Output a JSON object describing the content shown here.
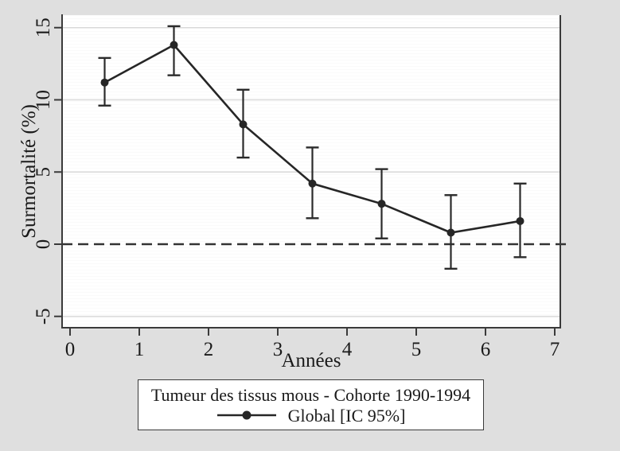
{
  "figure": {
    "background_color": "#dfdfdf",
    "plot_background_color": "#ffffff"
  },
  "chart_data": {
    "type": "line",
    "title": "",
    "xlabel": "Années",
    "ylabel": "Surmortalité (%)",
    "x": [
      0.5,
      1.5,
      2.5,
      3.5,
      4.5,
      5.5,
      6.5
    ],
    "series": [
      {
        "name": "Global [IC 95%]",
        "values": [
          11.2,
          13.8,
          8.3,
          4.2,
          2.8,
          0.8,
          1.6
        ],
        "ci_low": [
          9.6,
          11.7,
          6.0,
          1.8,
          0.4,
          -1.7,
          -0.9
        ],
        "ci_high": [
          12.9,
          15.1,
          10.7,
          6.7,
          5.2,
          3.4,
          4.2
        ]
      }
    ],
    "x_ticks": [
      0,
      1,
      2,
      3,
      4,
      5,
      6,
      7
    ],
    "y_ticks": [
      -5,
      0,
      5,
      10,
      15
    ],
    "xlim": [
      -0.12,
      7.1
    ],
    "ylim": [
      -5.8,
      15.9
    ],
    "grid": true,
    "reference_line_y": 0,
    "reference_line_style": "dashed",
    "legend_position": "bottom",
    "legend": {
      "title": "Tumeur des tissus mous - Cohorte 1990-1994",
      "entries": [
        {
          "label": "Global [IC 95%]"
        }
      ]
    },
    "colors": {
      "series_line": "#262626",
      "marker": "#262626",
      "error_bar": "#2b2b2b",
      "grid_line": "#d9d9d9",
      "axis_line": "#3a3a3a",
      "reference_line": "#333333",
      "text": "#1a1a1a"
    }
  }
}
